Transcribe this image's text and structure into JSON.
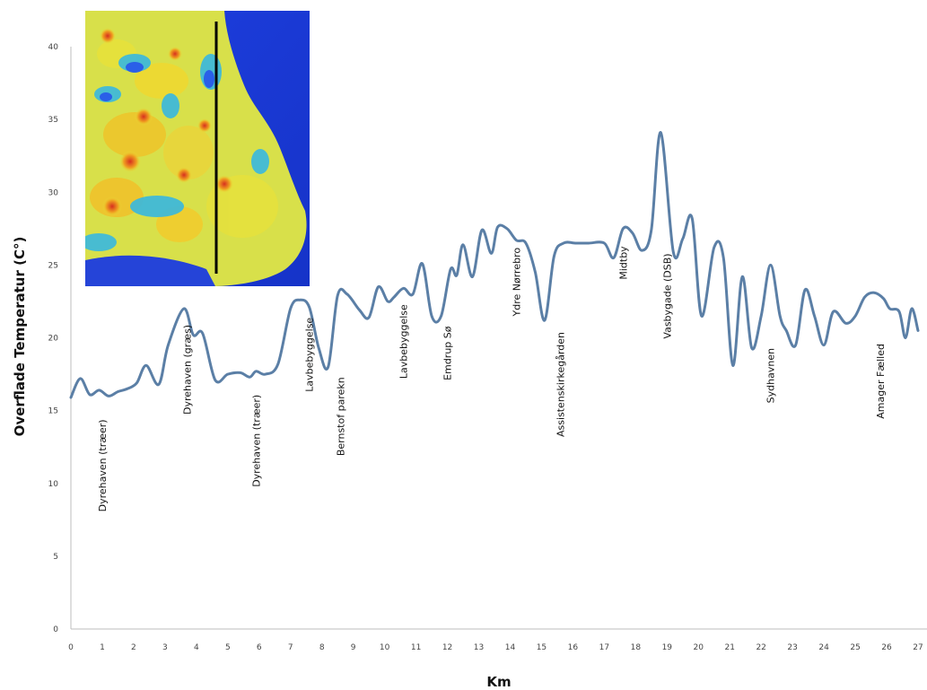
{
  "chart_data": {
    "type": "line",
    "title": "",
    "xlabel": "Km",
    "ylabel": "Overflade Temperatur (C°)",
    "xlim": [
      0,
      27
    ],
    "ylim": [
      0,
      40
    ],
    "x_ticks": [
      0,
      1,
      2,
      3,
      4,
      5,
      6,
      7,
      8,
      9,
      10,
      11,
      12,
      13,
      14,
      15,
      16,
      17,
      18,
      19,
      20,
      21,
      22,
      23,
      24,
      25,
      26,
      27
    ],
    "y_ticks": [
      0,
      5,
      10,
      15,
      20,
      25,
      30,
      35,
      40
    ],
    "grid": false,
    "legend": "none",
    "line_color": "#5b7fa6",
    "series": [
      {
        "x": [
          0,
          0.3,
          0.6,
          0.9,
          1.2,
          1.5,
          1.8,
          2.1,
          2.4,
          2.8,
          3.1,
          3.6,
          3.9,
          4.2,
          4.6,
          5.0,
          5.4,
          5.7,
          5.9,
          6.2,
          6.6,
          7.0,
          7.3,
          7.6,
          7.9,
          8.2,
          8.5,
          8.8,
          9.2,
          9.5,
          9.8,
          10.1,
          10.3,
          10.6,
          10.9,
          11.2,
          11.5,
          11.8,
          12.1,
          12.3,
          12.5,
          12.8,
          13.1,
          13.4,
          13.6,
          13.9,
          14.2,
          14.5,
          14.8,
          15.1,
          15.4,
          15.7,
          16.1,
          16.5,
          17.0,
          17.3,
          17.6,
          17.9,
          18.2,
          18.5,
          18.8,
          19.2,
          19.5,
          19.8,
          20.1,
          20.5,
          20.8,
          21.1,
          21.4,
          21.7,
          22.0,
          22.3,
          22.6,
          22.8,
          23.1,
          23.4,
          23.7,
          24.0,
          24.3,
          24.7,
          25.0,
          25.3,
          25.6,
          25.9,
          26.1,
          26.4,
          26.6,
          26.8,
          27.0
        ],
        "values": [
          15.9,
          17.2,
          16.1,
          16.4,
          16.0,
          16.3,
          16.5,
          16.9,
          18.1,
          16.8,
          19.5,
          22.0,
          20.2,
          20.3,
          17.1,
          17.5,
          17.6,
          17.3,
          17.7,
          17.5,
          18.2,
          22.0,
          22.6,
          22.1,
          19.3,
          18.0,
          22.9,
          23.0,
          21.9,
          21.4,
          23.5,
          22.5,
          22.8,
          23.4,
          23.0,
          25.1,
          21.5,
          21.5,
          24.7,
          24.3,
          26.4,
          24.2,
          27.4,
          25.8,
          27.6,
          27.5,
          26.7,
          26.5,
          24.5,
          21.2,
          25.6,
          26.5,
          26.5,
          26.5,
          26.5,
          25.5,
          27.5,
          27.2,
          26.0,
          27.4,
          34.1,
          25.9,
          26.8,
          28.2,
          21.5,
          26.2,
          25.5,
          18.1,
          24.2,
          19.3,
          21.5,
          25.0,
          21.5,
          20.5,
          19.5,
          23.3,
          21.5,
          19.5,
          21.8,
          21.0,
          21.5,
          22.8,
          23.1,
          22.7,
          22.0,
          21.8,
          20.0,
          22.0,
          20.5
        ]
      }
    ],
    "annotations": [
      {
        "text": "Dyrehaven (træer)",
        "x": 1.0,
        "y": 14.4
      },
      {
        "text": "Dyrehaven (græs)",
        "x": 3.7,
        "y": 20.9
      },
      {
        "text": "Dyrehaven (træer)",
        "x": 5.9,
        "y": 16.1
      },
      {
        "text": "Lavbebyggelse",
        "x": 7.6,
        "y": 21.4
      },
      {
        "text": "Bernstof parekn",
        "x": 8.6,
        "y": 17.3
      },
      {
        "text": "Lavbebyggelse",
        "x": 10.6,
        "y": 22.3
      },
      {
        "text": "Emdrup Sø",
        "x": 12.0,
        "y": 20.8
      },
      {
        "text": "Ydre Nørrebro",
        "x": 14.2,
        "y": 26.2
      },
      {
        "text": "Assistenskirkegården",
        "x": 15.6,
        "y": 20.4
      },
      {
        "text": "Midtby",
        "x": 17.6,
        "y": 26.3
      },
      {
        "text": "Vasbygade (DSB)",
        "x": 19.0,
        "y": 25.8
      },
      {
        "text": "Sydhavnen",
        "x": 22.3,
        "y": 19.3
      },
      {
        "text": "Amager Fælled",
        "x": 25.8,
        "y": 19.6
      }
    ]
  }
}
